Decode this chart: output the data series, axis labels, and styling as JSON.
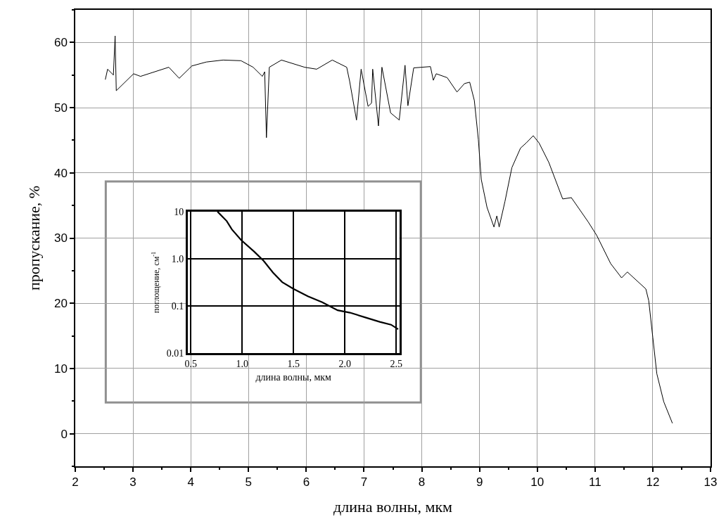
{
  "chart_data": [
    {
      "type": "line",
      "xlabel": "длина волны, мкм",
      "ylabel": "пропускание, %",
      "x": [
        2.52,
        2.56,
        2.66,
        2.69,
        2.71,
        3.01,
        3.13,
        3.62,
        3.8,
        4.02,
        4.27,
        4.56,
        4.87,
        5.08,
        5.24,
        5.28,
        5.31,
        5.36,
        5.57,
        5.97,
        6.18,
        6.45,
        6.7,
        6.75,
        6.87,
        6.95,
        7.07,
        7.13,
        7.15,
        7.25,
        7.31,
        7.46,
        7.61,
        7.71,
        7.76,
        7.86,
        8.15,
        8.2,
        8.25,
        8.44,
        8.61,
        8.74,
        8.83,
        8.91,
        8.98,
        9.03,
        9.13,
        9.25,
        9.3,
        9.34,
        9.44,
        9.56,
        9.71,
        9.81,
        9.93,
        10.03,
        10.2,
        10.44,
        10.59,
        10.88,
        11.03,
        11.27,
        11.46,
        11.56,
        11.88,
        11.93,
        12.0,
        12.07,
        12.19,
        12.34
      ],
      "series": [
        {
          "color": "#000000",
          "values": [
            54.3,
            55.9,
            55.0,
            61.0,
            52.6,
            55.2,
            54.8,
            56.2,
            54.5,
            56.4,
            57.0,
            57.3,
            57.2,
            56.2,
            54.8,
            55.5,
            45.4,
            56.2,
            57.3,
            56.2,
            55.9,
            57.3,
            56.2,
            54.1,
            48.1,
            55.9,
            50.2,
            50.7,
            55.9,
            47.2,
            56.2,
            49.2,
            48.1,
            56.5,
            50.3,
            56.1,
            56.3,
            54.2,
            55.2,
            54.6,
            52.4,
            53.7,
            53.9,
            51.1,
            45.1,
            39.0,
            34.7,
            31.7,
            33.4,
            31.7,
            35.6,
            40.8,
            43.8,
            44.6,
            45.7,
            44.6,
            41.6,
            36.0,
            36.2,
            32.5,
            30.4,
            26.1,
            23.9,
            24.8,
            22.2,
            20.4,
            14.8,
            9.2,
            4.9,
            1.6
          ]
        }
      ],
      "xlim": [
        2,
        13
      ],
      "xticks": [
        2,
        {
          "value": 2.5,
          "label": null
        },
        3,
        {
          "value": 3.5,
          "label": null
        },
        4,
        {
          "value": 4.5,
          "label": null
        },
        5,
        {
          "value": 5.5,
          "label": null
        },
        6,
        {
          "value": 6.5,
          "label": null
        },
        7,
        {
          "value": 7.5,
          "label": null
        },
        8,
        {
          "value": 8.5,
          "label": null
        },
        9,
        {
          "value": 9.5,
          "label": null
        },
        10,
        {
          "value": 10.5,
          "label": null
        },
        11,
        {
          "value": 11.5,
          "label": null
        },
        12,
        {
          "value": 12.5,
          "label": null
        },
        13
      ],
      "ylim": [
        -5,
        65
      ],
      "yticks": [
        {
          "value": -5,
          "label": null
        },
        0,
        {
          "value": 5,
          "label": null
        },
        10,
        {
          "value": 15,
          "label": null
        },
        20,
        {
          "value": 25,
          "label": null
        },
        30,
        {
          "value": 35,
          "label": null
        },
        40,
        {
          "value": 45,
          "label": null
        },
        50,
        {
          "value": 55,
          "label": null
        },
        60,
        {
          "value": 65,
          "label": null
        }
      ],
      "grid": true,
      "marker": "none",
      "line_style": "solid"
    },
    {
      "type": "line",
      "xlabel": "длина волны, мкм",
      "ylabel": "поглощение, см$^{-1}$",
      "x": [
        0.76,
        0.85,
        0.9,
        0.99,
        1.12,
        1.21,
        1.3,
        1.39,
        1.5,
        1.64,
        1.78,
        1.93,
        2.05,
        2.2,
        2.34,
        2.45,
        2.52
      ],
      "series": [
        {
          "color": "#000000",
          "values": [
            10,
            6.3,
            4.2,
            2.5,
            1.4,
            0.9,
            0.51,
            0.32,
            0.23,
            0.16,
            0.12,
            0.081,
            0.072,
            0.057,
            0.046,
            0.04,
            0.032
          ]
        }
      ],
      "xlim": [
        0.47,
        2.53
      ],
      "xticks": [
        {
          "value": 0.5,
          "label": "0.5"
        },
        {
          "value": 1,
          "label": "1.0"
        },
        {
          "value": 1.5,
          "label": "1.5"
        },
        {
          "value": 2,
          "label": "2.0"
        },
        {
          "value": 2.5,
          "label": "2.5"
        }
      ],
      "ylim": [
        0.01,
        10
      ],
      "yticks": [
        0.01,
        0.1,
        {
          "value": 1,
          "label": "1.0"
        },
        10
      ],
      "log": "y",
      "grid": true,
      "marker": "none",
      "line_style": "solid"
    }
  ]
}
